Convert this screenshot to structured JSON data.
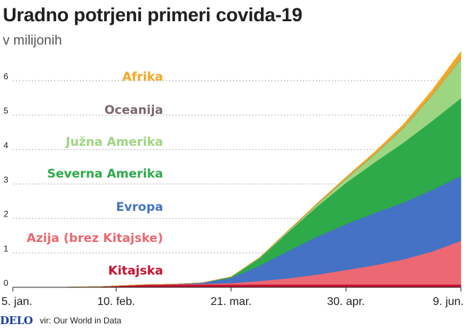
{
  "header": {
    "title": "Uradno potrjeni primeri covida-19",
    "subtitle": "v milijonih"
  },
  "footer": {
    "logo": "DELO",
    "source": "vir: Our World in Data"
  },
  "colors": {
    "Kitajska": "#c8102e",
    "Azija (brez Kitajske)": "#ec6872",
    "Evropa": "#4472c4",
    "Severna Amerika": "#2eaa4a",
    "Južna Amerika": "#9ed581",
    "Oceanija": "#7a6670",
    "Afrika": "#f5a623"
  },
  "chart_data": {
    "type": "area",
    "stacked": true,
    "title": "Uradno potrjeni primeri covida-19",
    "subtitle": "v milijonih",
    "x": [
      "2020-01-05",
      "2020-01-20",
      "2020-02-04",
      "2020-02-10",
      "2020-02-20",
      "2020-03-01",
      "2020-03-11",
      "2020-03-21",
      "2020-03-31",
      "2020-04-10",
      "2020-04-20",
      "2020-04-30",
      "2020-05-10",
      "2020-05-20",
      "2020-05-30",
      "2020-06-09"
    ],
    "x_ticks": [
      "2020-01-05",
      "2020-02-10",
      "2020-03-21",
      "2020-04-30",
      "2020-06-09"
    ],
    "x_tick_labels": [
      "5. jan.",
      "10. feb.",
      "21. mar.",
      "30. apr.",
      "9. jun."
    ],
    "ylim": [
      0,
      6.7
    ],
    "y_ticks": [
      0,
      1,
      2,
      3,
      4,
      5,
      6
    ],
    "grid": "horizontal-dotted",
    "legend_position": "inline-left",
    "series": [
      {
        "name": "Kitajska",
        "values": [
          0,
          0.0,
          0.02,
          0.042,
          0.075,
          0.08,
          0.081,
          0.081,
          0.082,
          0.083,
          0.083,
          0.083,
          0.083,
          0.083,
          0.083,
          0.083
        ]
      },
      {
        "name": "Azija (brez Kitajske)",
        "values": [
          0,
          0,
          0.0,
          0.001,
          0.003,
          0.008,
          0.02,
          0.04,
          0.1,
          0.18,
          0.29,
          0.42,
          0.56,
          0.73,
          0.96,
          1.27
        ]
      },
      {
        "name": "Evropa",
        "values": [
          0,
          0,
          0,
          0.0,
          0.0,
          0.004,
          0.03,
          0.15,
          0.45,
          0.8,
          1.1,
          1.33,
          1.52,
          1.65,
          1.79,
          1.88
        ]
      },
      {
        "name": "Severna Amerika",
        "values": [
          0,
          0,
          0,
          0.0,
          0.0,
          0.0,
          0.002,
          0.03,
          0.22,
          0.55,
          0.88,
          1.2,
          1.47,
          1.74,
          2.0,
          2.26
        ]
      },
      {
        "name": "Južna Amerika",
        "values": [
          0,
          0,
          0,
          0,
          0,
          0,
          0.0,
          0.002,
          0.011,
          0.028,
          0.06,
          0.12,
          0.23,
          0.43,
          0.75,
          1.15
        ]
      },
      {
        "name": "Oceanija",
        "values": [
          0,
          0,
          0,
          0,
          0,
          0,
          0.0,
          0.001,
          0.005,
          0.008,
          0.009,
          0.009,
          0.009,
          0.009,
          0.009,
          0.01
        ]
      },
      {
        "name": "Afrika",
        "values": [
          0,
          0,
          0,
          0,
          0,
          0,
          0.0,
          0.001,
          0.005,
          0.012,
          0.022,
          0.037,
          0.06,
          0.09,
          0.135,
          0.2
        ]
      }
    ]
  }
}
